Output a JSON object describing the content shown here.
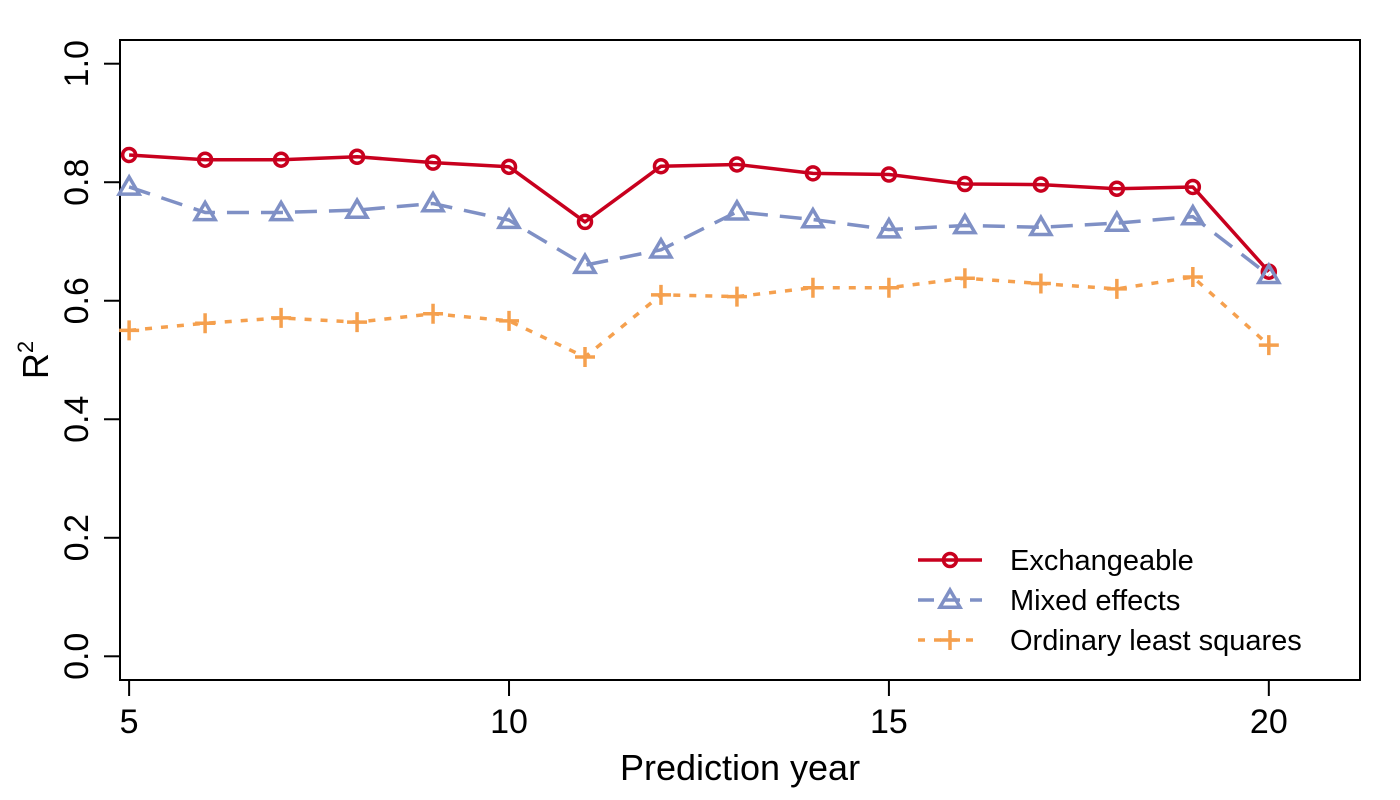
{
  "chart_data": {
    "type": "line",
    "title": "",
    "xlabel": "Prediction year",
    "ylabel_base": "R",
    "ylabel_superscript": "2",
    "xlim": [
      4.88,
      21.2
    ],
    "ylim": [
      -0.04,
      1.04
    ],
    "x_ticks": [
      5,
      10,
      15,
      20
    ],
    "y_ticks": [
      "0.0",
      "0.2",
      "0.4",
      "0.6",
      "0.8",
      "1.0"
    ],
    "legend_position": "bottom-right",
    "x": [
      5,
      6,
      7,
      8,
      9,
      10,
      11,
      12,
      13,
      14,
      15,
      16,
      17,
      18,
      19,
      20
    ],
    "series": [
      {
        "name": "Exchangeable",
        "color": "#c8001e",
        "dash": "solid",
        "marker": "circle",
        "values": [
          0.846,
          0.838,
          0.838,
          0.843,
          0.833,
          0.826,
          0.733,
          0.827,
          0.83,
          0.815,
          0.813,
          0.797,
          0.796,
          0.789,
          0.792,
          0.649
        ]
      },
      {
        "name": "Mixed effects",
        "color": "#7f90c5",
        "dash": "dashed",
        "marker": "triangle",
        "values": [
          0.792,
          0.749,
          0.749,
          0.753,
          0.764,
          0.736,
          0.66,
          0.686,
          0.75,
          0.737,
          0.72,
          0.727,
          0.724,
          0.731,
          0.742,
          0.643
        ]
      },
      {
        "name": "Ordinary least squares",
        "color": "#f5a04e",
        "dash": "dotted",
        "marker": "plus",
        "values": [
          0.55,
          0.562,
          0.571,
          0.564,
          0.578,
          0.566,
          0.505,
          0.61,
          0.607,
          0.622,
          0.622,
          0.638,
          0.629,
          0.62,
          0.64,
          0.525
        ]
      }
    ]
  }
}
